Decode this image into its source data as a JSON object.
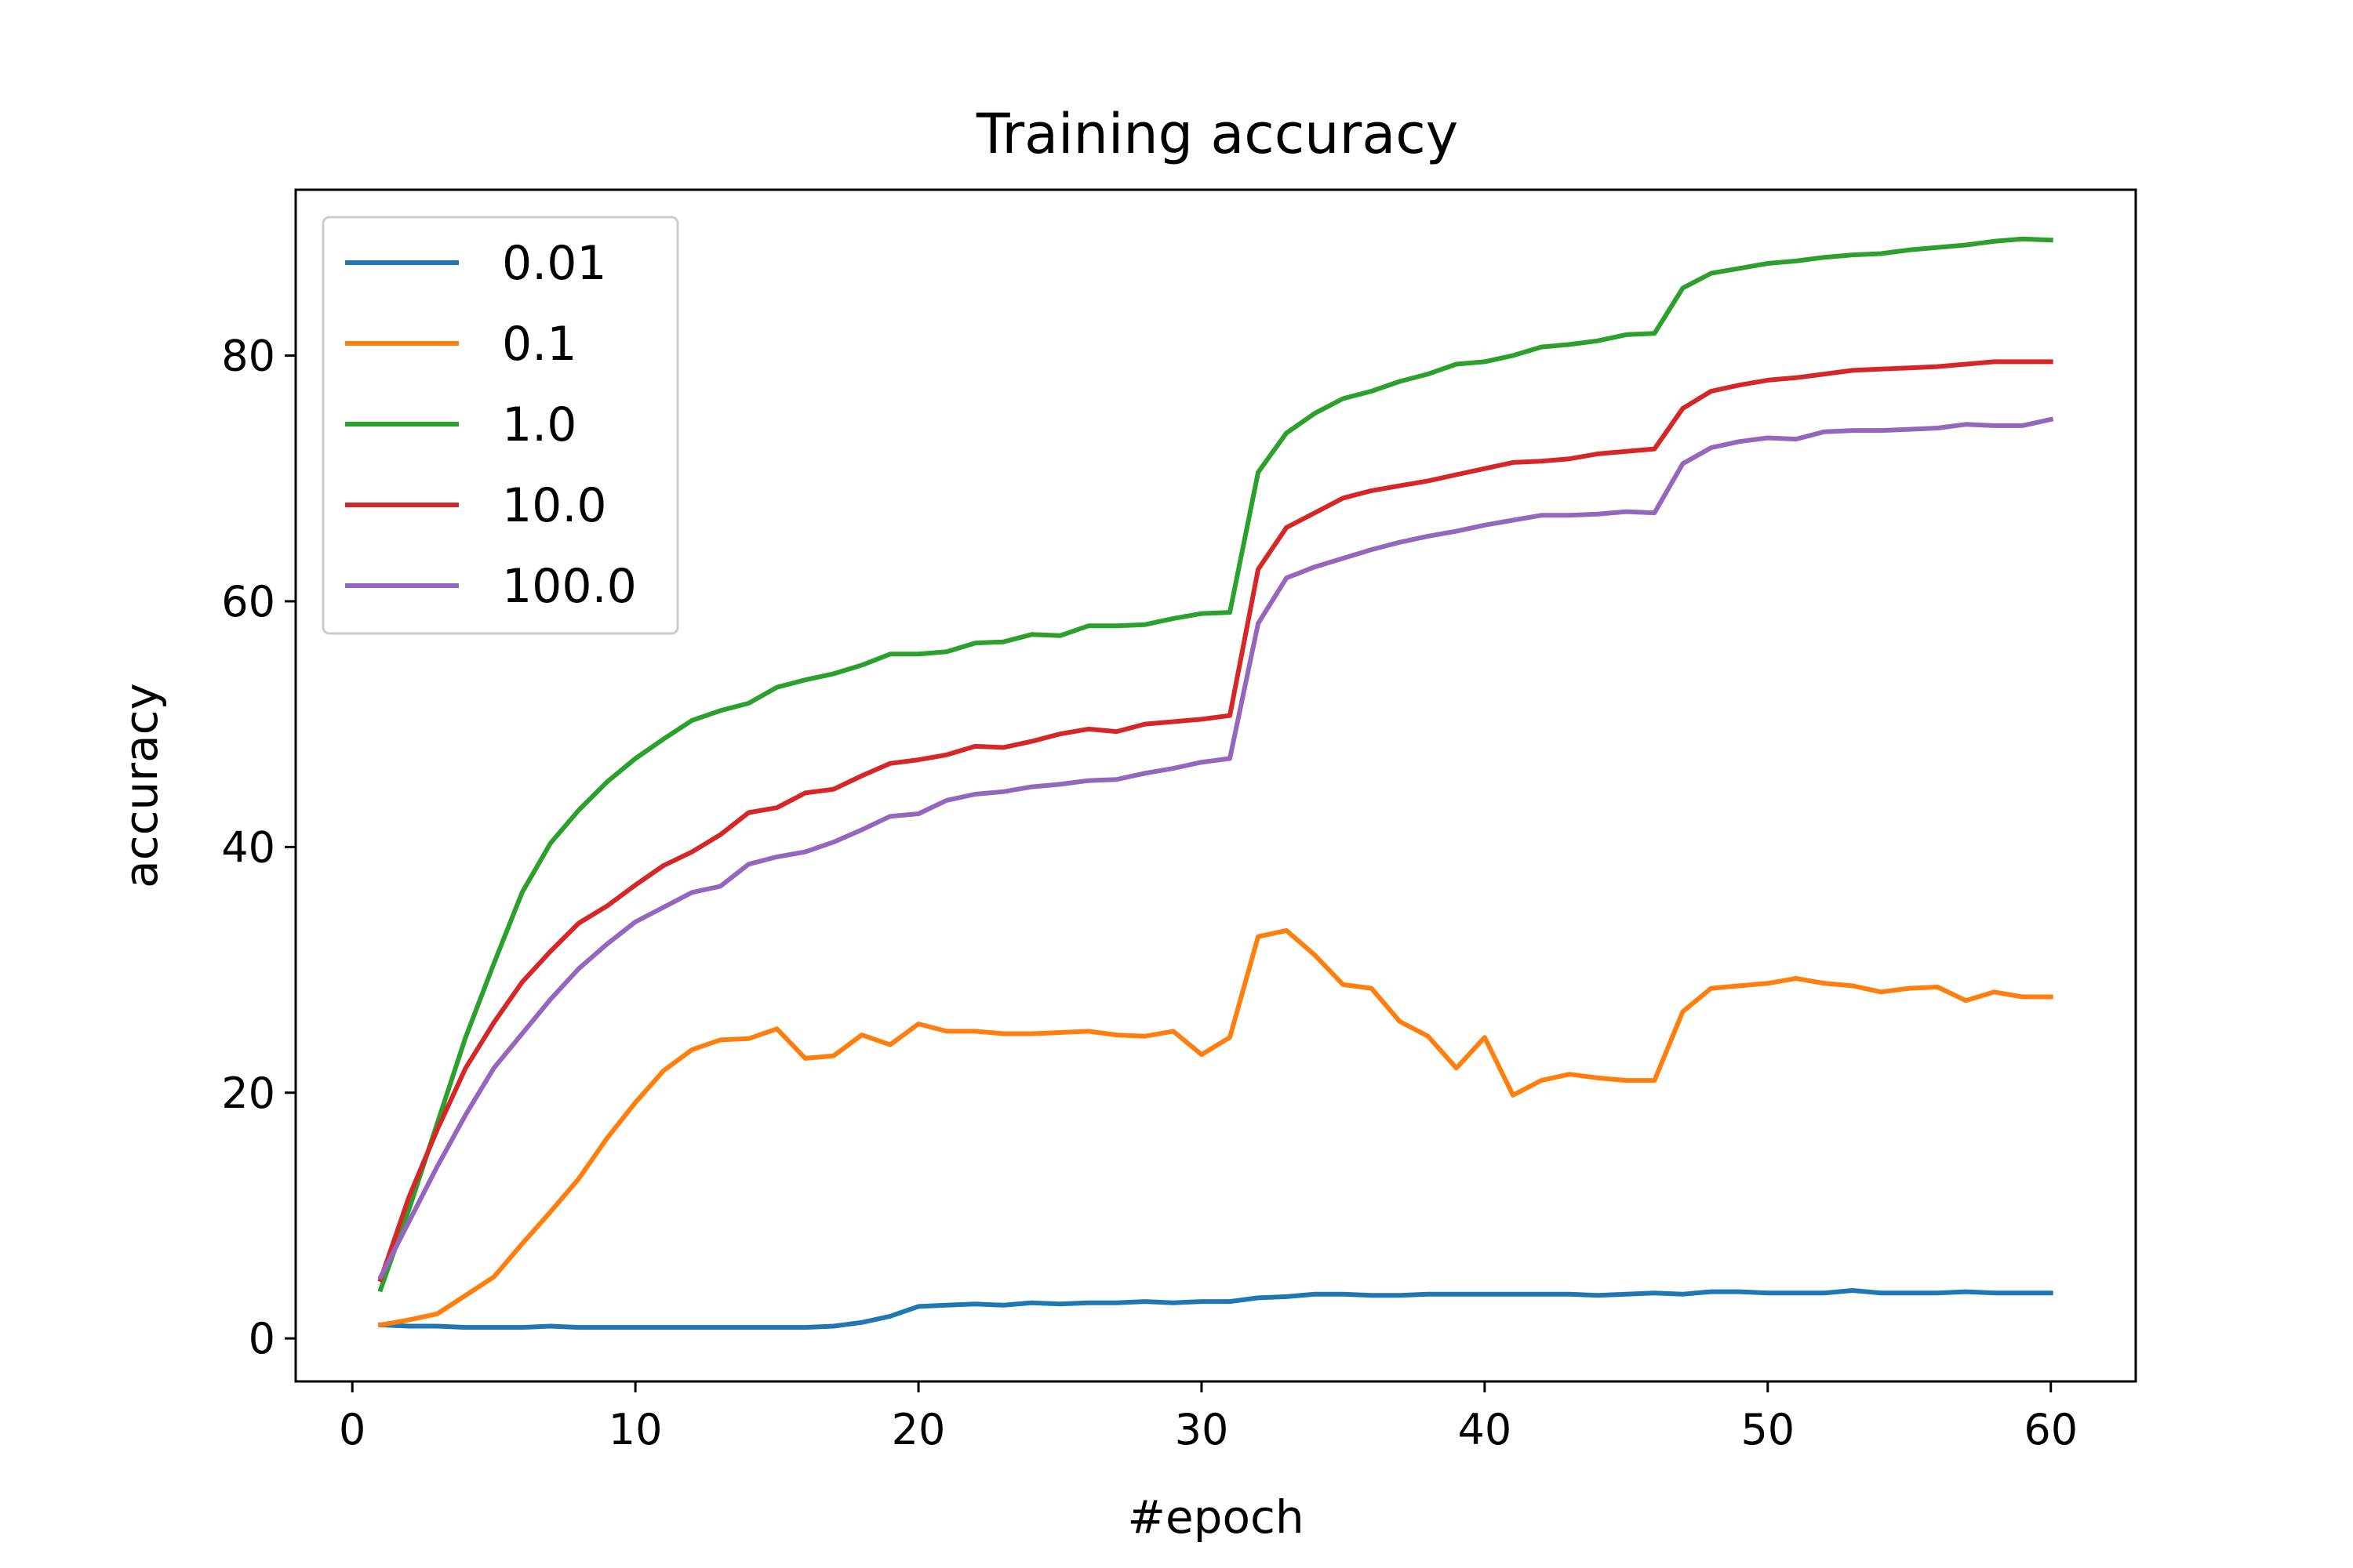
{
  "chart_data": {
    "type": "line",
    "title": "Training accuracy",
    "xlabel": "#epoch",
    "ylabel": "accuracy",
    "xlim": [
      -2,
      63
    ],
    "ylim": [
      -3.5,
      93.5
    ],
    "xticks": [
      0,
      10,
      20,
      30,
      40,
      50,
      60
    ],
    "yticks": [
      0,
      20,
      40,
      60,
      80
    ],
    "grid": false,
    "legend_position": "top-left",
    "x": [
      1,
      2,
      3,
      4,
      5,
      6,
      7,
      8,
      9,
      10,
      11,
      12,
      13,
      14,
      15,
      16,
      17,
      18,
      19,
      20,
      21,
      22,
      23,
      24,
      25,
      26,
      27,
      28,
      29,
      30,
      31,
      32,
      33,
      34,
      35,
      36,
      37,
      38,
      39,
      40,
      41,
      42,
      43,
      44,
      45,
      46,
      47,
      48,
      49,
      50,
      51,
      52,
      53,
      54,
      55,
      56,
      57,
      58,
      59,
      60
    ],
    "series": [
      {
        "name": "0.01",
        "color": "#1f77b4",
        "values": [
          1.1,
          1.0,
          1.0,
          0.9,
          0.9,
          0.9,
          1.0,
          0.9,
          0.9,
          0.9,
          0.9,
          0.9,
          0.9,
          0.9,
          0.9,
          0.9,
          1.0,
          1.3,
          1.8,
          2.6,
          2.7,
          2.8,
          2.7,
          2.9,
          2.8,
          2.9,
          2.9,
          3.0,
          2.9,
          3.0,
          3.0,
          3.3,
          3.4,
          3.6,
          3.6,
          3.5,
          3.5,
          3.6,
          3.6,
          3.6,
          3.6,
          3.6,
          3.6,
          3.5,
          3.6,
          3.7,
          3.6,
          3.8,
          3.8,
          3.7,
          3.7,
          3.7,
          3.9,
          3.7,
          3.7,
          3.7,
          3.8,
          3.7,
          3.7,
          3.7
        ]
      },
      {
        "name": "0.1",
        "color": "#ff7f0e",
        "values": [
          1.1,
          1.5,
          2.0,
          3.5,
          5.0,
          7.7,
          10.3,
          13.0,
          16.3,
          19.2,
          21.8,
          23.5,
          24.3,
          24.4,
          25.2,
          22.8,
          23.0,
          24.7,
          23.9,
          25.6,
          25.0,
          25.0,
          24.8,
          24.8,
          24.9,
          25.0,
          24.7,
          24.6,
          25.0,
          23.1,
          24.5,
          32.7,
          33.2,
          31.2,
          28.8,
          28.5,
          25.8,
          24.6,
          22.0,
          24.5,
          19.8,
          21.0,
          21.5,
          21.2,
          21.0,
          21.0,
          26.6,
          28.5,
          28.7,
          28.9,
          29.3,
          28.9,
          28.7,
          28.2,
          28.5,
          28.6,
          27.5,
          28.2,
          27.8,
          27.8
        ]
      },
      {
        "name": "1.0",
        "color": "#2ca02c",
        "values": [
          4.0,
          10.5,
          17.5,
          24.5,
          30.5,
          36.3,
          40.3,
          43.0,
          45.3,
          47.2,
          48.8,
          50.3,
          51.1,
          51.7,
          53.0,
          53.6,
          54.1,
          54.8,
          55.7,
          55.7,
          55.9,
          56.6,
          56.7,
          57.3,
          57.2,
          58.0,
          58.0,
          58.1,
          58.6,
          59.0,
          59.1,
          70.5,
          73.7,
          75.3,
          76.5,
          77.1,
          77.9,
          78.5,
          79.3,
          79.5,
          80.0,
          80.7,
          80.9,
          81.2,
          81.7,
          81.8,
          85.5,
          86.7,
          87.1,
          87.5,
          87.7,
          88.0,
          88.2,
          88.3,
          88.6,
          88.8,
          89.0,
          89.3,
          89.5,
          89.4
        ]
      },
      {
        "name": "10.0",
        "color": "#d62728",
        "values": [
          4.8,
          11.5,
          17.0,
          22.0,
          25.7,
          29.0,
          31.5,
          33.8,
          35.2,
          36.9,
          38.5,
          39.6,
          41.0,
          42.8,
          43.2,
          44.4,
          44.7,
          45.8,
          46.8,
          47.1,
          47.5,
          48.2,
          48.1,
          48.6,
          49.2,
          49.6,
          49.4,
          50.0,
          50.2,
          50.4,
          50.7,
          62.6,
          66.0,
          67.2,
          68.4,
          69.0,
          69.4,
          69.8,
          70.3,
          70.8,
          71.3,
          71.4,
          71.6,
          72.0,
          72.2,
          72.4,
          75.7,
          77.1,
          77.6,
          78.0,
          78.2,
          78.5,
          78.8,
          78.9,
          79.0,
          79.1,
          79.3,
          79.5,
          79.5,
          79.5
        ]
      },
      {
        "name": "100.0",
        "color": "#9467bd",
        "values": [
          5.0,
          9.5,
          14.0,
          18.2,
          22.0,
          24.8,
          27.6,
          30.1,
          32.1,
          33.9,
          35.1,
          36.3,
          36.8,
          38.6,
          39.2,
          39.6,
          40.4,
          41.4,
          42.5,
          42.7,
          43.8,
          44.3,
          44.5,
          44.9,
          45.1,
          45.4,
          45.5,
          46.0,
          46.4,
          46.9,
          47.2,
          58.2,
          61.9,
          62.8,
          63.5,
          64.2,
          64.8,
          65.3,
          65.7,
          66.2,
          66.6,
          67.0,
          67.0,
          67.1,
          67.3,
          67.2,
          71.2,
          72.5,
          73.0,
          73.3,
          73.2,
          73.8,
          73.9,
          73.9,
          74.0,
          74.1,
          74.4,
          74.3,
          74.3,
          74.8
        ]
      }
    ]
  }
}
